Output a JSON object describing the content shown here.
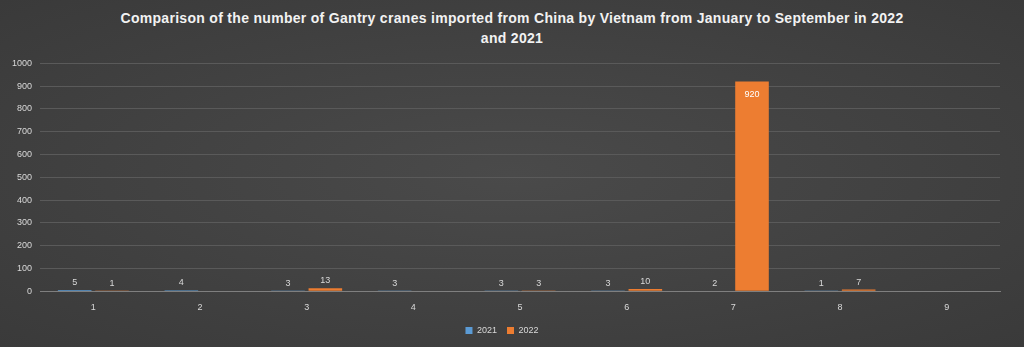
{
  "chart_data": {
    "type": "bar",
    "title": "Comparison of the number of Gantry cranes imported from China by Vietnam from January to September in 2022 and 2021",
    "categories": [
      "1",
      "2",
      "3",
      "4",
      "5",
      "6",
      "7",
      "8",
      "9"
    ],
    "series": [
      {
        "name": "2021",
        "color": "#5b9bd5",
        "values": [
          5,
          4,
          3,
          3,
          3,
          3,
          2,
          1,
          null
        ]
      },
      {
        "name": "2022",
        "color": "#ed7d31",
        "values": [
          1,
          null,
          13,
          null,
          3,
          10,
          920,
          7,
          null
        ]
      }
    ],
    "ylim": [
      0,
      1000
    ],
    "yticks": [
      0,
      100,
      200,
      300,
      400,
      500,
      600,
      700,
      800,
      900,
      1000
    ],
    "grid": true,
    "legend": "bottom",
    "data_labels": true
  }
}
